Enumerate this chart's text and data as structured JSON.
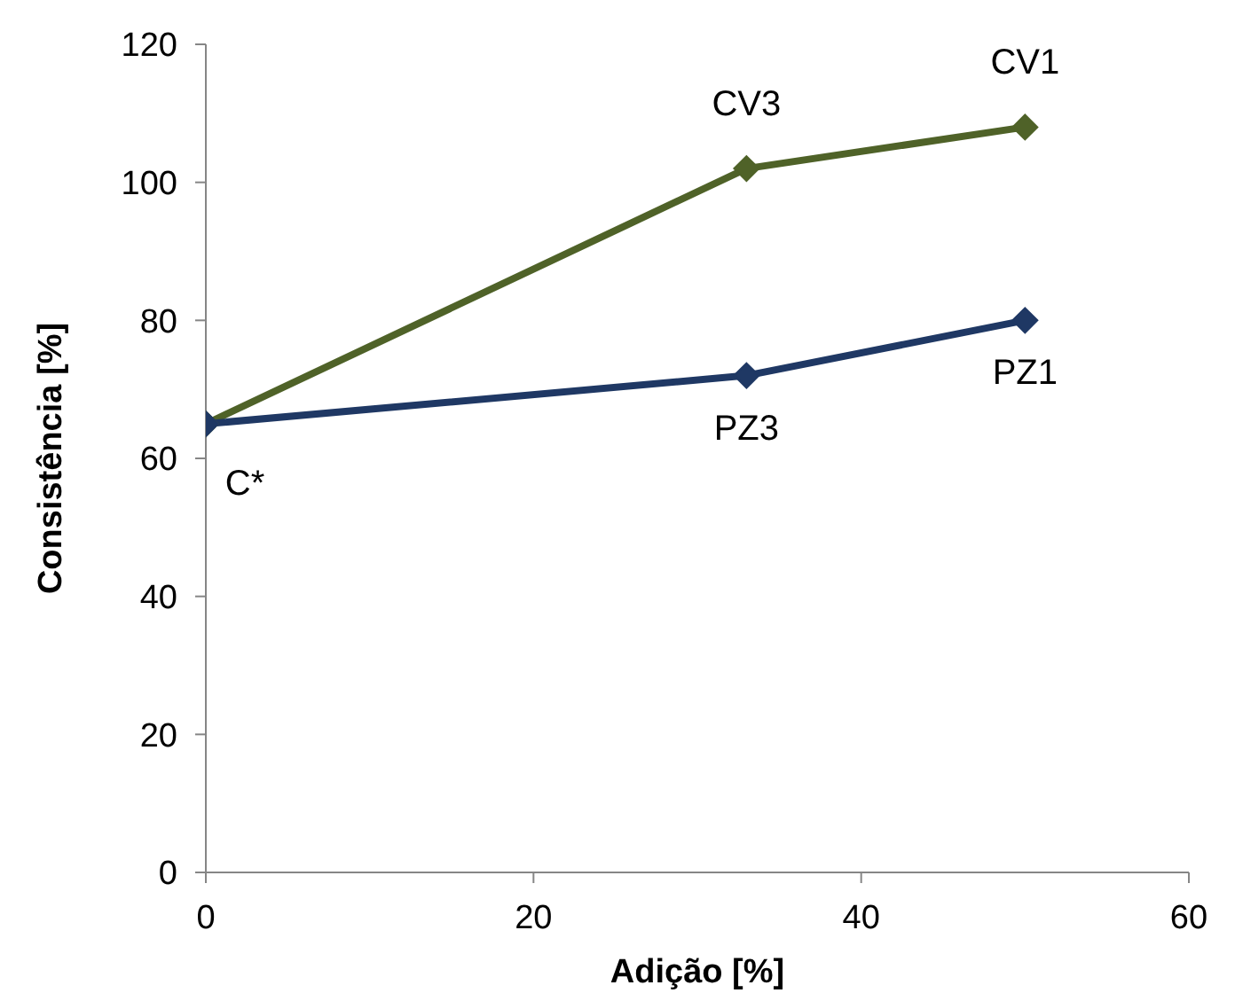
{
  "chart_data": {
    "type": "line",
    "xlabel": "Adição [%]",
    "ylabel": "Consistência [%]",
    "x": [
      0,
      33,
      50
    ],
    "series": [
      {
        "color": "#4f6228",
        "values": [
          65,
          102,
          108
        ]
      },
      {
        "color": "#1f3864",
        "values": [
          65,
          72,
          80
        ]
      }
    ],
    "xlim": [
      0,
      60
    ],
    "xticks": [
      0,
      20,
      40,
      60
    ],
    "ylim": [
      0,
      120
    ],
    "yticks": [
      0,
      20,
      40,
      60,
      80,
      100,
      120
    ],
    "grid": false,
    "legend": false,
    "marker": "diamond",
    "line_style": "solid",
    "annotations": [
      {
        "text": "C*",
        "x": 0,
        "y": 65
      },
      {
        "text": "CV3",
        "x": 33,
        "y": 102
      },
      {
        "text": "CV1",
        "x": 50,
        "y": 108
      },
      {
        "text": "PZ3",
        "x": 33,
        "y": 72
      },
      {
        "text": "PZ1",
        "x": 50,
        "y": 80
      }
    ]
  }
}
